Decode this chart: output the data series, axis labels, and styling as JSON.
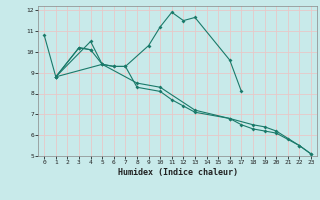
{
  "xlabel": "Humidex (Indice chaleur)",
  "bg_color": "#c8eaea",
  "grid_color": "#e8c8c8",
  "line_color": "#1a7a6a",
  "xlim": [
    -0.5,
    23.5
  ],
  "ylim": [
    5,
    12.2
  ],
  "yticks": [
    5,
    6,
    7,
    8,
    9,
    10,
    11,
    12
  ],
  "xticks": [
    0,
    1,
    2,
    3,
    4,
    5,
    6,
    7,
    8,
    9,
    10,
    11,
    12,
    13,
    14,
    15,
    16,
    17,
    18,
    19,
    20,
    21,
    22,
    23
  ],
  "line1_x": [
    0,
    1,
    4,
    5,
    6,
    7,
    9,
    10,
    11,
    12,
    13,
    16,
    17
  ],
  "line1_y": [
    10.8,
    8.8,
    10.5,
    9.4,
    9.3,
    9.3,
    10.3,
    11.2,
    11.9,
    11.5,
    11.65,
    9.6,
    8.1
  ],
  "line2_x": [
    1,
    3,
    4
  ],
  "line2_y": [
    8.8,
    10.2,
    10.1
  ],
  "line3_x": [
    1,
    3,
    4,
    5,
    6,
    7,
    8,
    10,
    11,
    12,
    13,
    16,
    17,
    18,
    19,
    20,
    21,
    22,
    23
  ],
  "line3_y": [
    8.8,
    10.2,
    10.1,
    9.4,
    9.3,
    9.3,
    8.3,
    8.1,
    7.7,
    7.4,
    7.1,
    6.8,
    6.5,
    6.3,
    6.2,
    6.1,
    5.8,
    5.5,
    5.1
  ],
  "line4_x": [
    1,
    5,
    8,
    10,
    13,
    16,
    18,
    19,
    20,
    22,
    23
  ],
  "line4_y": [
    8.8,
    9.4,
    8.5,
    8.3,
    7.2,
    6.8,
    6.5,
    6.4,
    6.2,
    5.5,
    5.1
  ]
}
